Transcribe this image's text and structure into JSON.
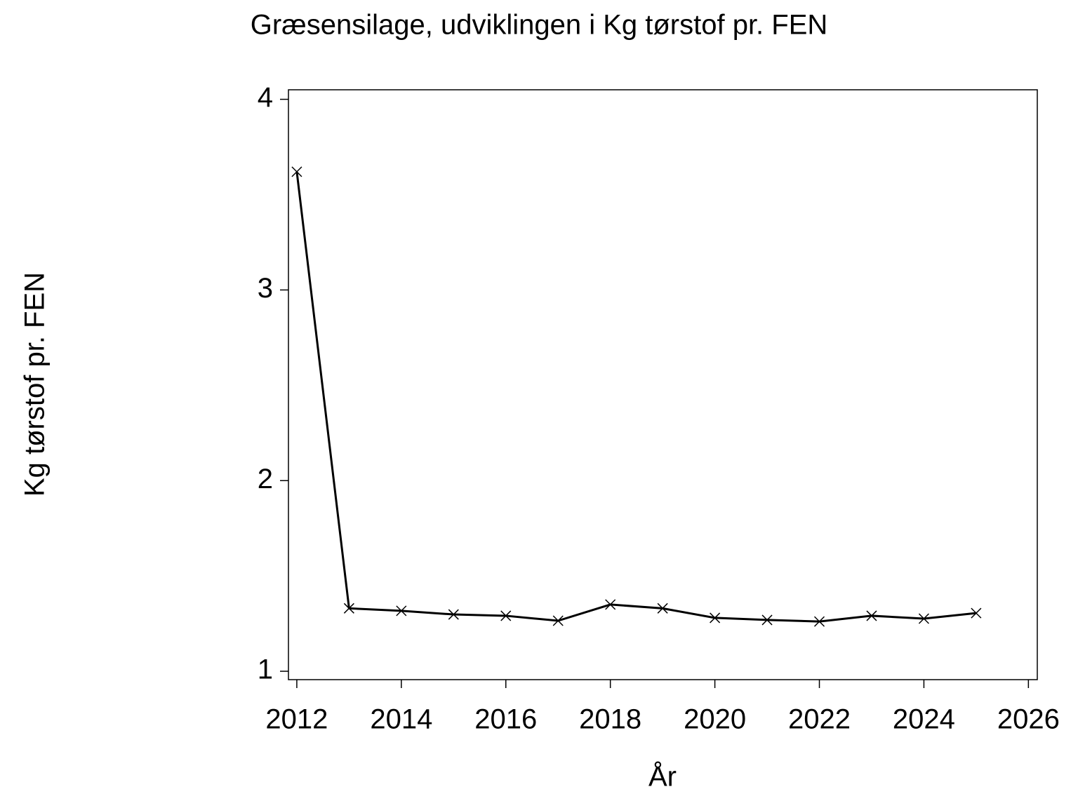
{
  "chart_data": {
    "type": "line",
    "title": "Græsensilage, udviklingen i Kg tørstof pr. FEN",
    "x_label": "År",
    "y_label": "Kg tørstof pr. FEN",
    "x": [
      2012,
      2013,
      2014,
      2015,
      2016,
      2017,
      2018,
      2019,
      2020,
      2021,
      2022,
      2023,
      2024,
      2025
    ],
    "series": [
      {
        "color": "#000000",
        "marker": "x",
        "values": [
          3.62,
          1.33,
          1.317,
          1.298,
          1.291,
          1.265,
          1.35,
          1.33,
          1.28,
          1.269,
          1.261,
          1.291,
          1.276,
          1.305
        ]
      }
    ],
    "xlim": [
      2011.84,
      2026.17
    ],
    "xticks": [
      2012,
      2014,
      2016,
      2018,
      2020,
      2022,
      2024,
      2026
    ],
    "ylim": [
      0.956,
      4.05
    ],
    "yticks": [
      1,
      2,
      3,
      4
    ],
    "grid": false
  }
}
